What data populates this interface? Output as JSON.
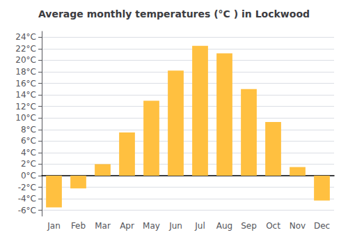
{
  "chart_data": {
    "type": "bar",
    "title": "Average monthly temperatures (°C ) in Lockwood",
    "categories": [
      "Jan",
      "Feb",
      "Mar",
      "Apr",
      "May",
      "Jun",
      "Jul",
      "Aug",
      "Sep",
      "Oct",
      "Nov",
      "Dec"
    ],
    "values": [
      -5.5,
      -2.2,
      2.0,
      7.5,
      13.0,
      18.2,
      22.5,
      21.2,
      15.0,
      9.3,
      1.5,
      -4.3
    ],
    "color": "#FFC040",
    "ylim": [
      -7,
      25
    ],
    "yticks": [
      {
        "value": -6,
        "label": "-6°C"
      },
      {
        "value": -4,
        "label": "-4°C"
      },
      {
        "value": -2,
        "label": "-2°C"
      },
      {
        "value": 0,
        "label": "0°C"
      },
      {
        "value": 2,
        "label": "2°C"
      },
      {
        "value": 4,
        "label": "4°C"
      },
      {
        "value": 6,
        "label": "6°C"
      },
      {
        "value": 8,
        "label": "8°C"
      },
      {
        "value": 10,
        "label": "10°C"
      },
      {
        "value": 12,
        "label": "12°C"
      },
      {
        "value": 14,
        "label": "14°C"
      },
      {
        "value": 16,
        "label": "16°C"
      },
      {
        "value": 18,
        "label": "18°C"
      },
      {
        "value": 20,
        "label": "20°C"
      },
      {
        "value": 22,
        "label": "22°C"
      },
      {
        "value": 24,
        "label": "24°C"
      }
    ],
    "grid": true
  }
}
